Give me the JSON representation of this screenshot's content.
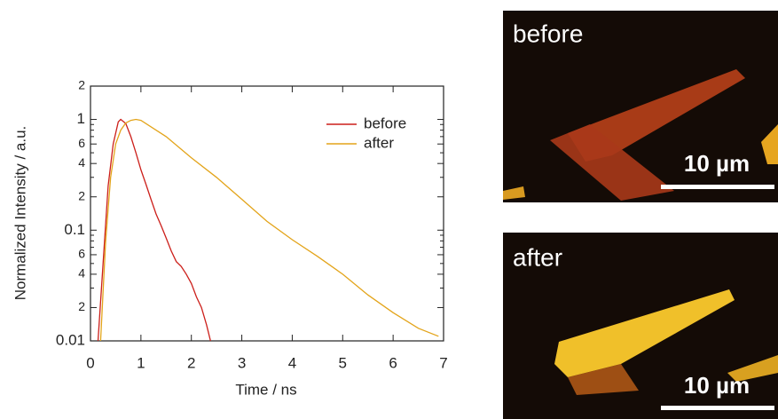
{
  "chart_data": {
    "type": "line",
    "log_y": true,
    "xlabel": "Time / ns",
    "ylabel": "Normalized Intensity / a.u.",
    "xlim": [
      0,
      7
    ],
    "xticks": [
      0,
      1,
      2,
      3,
      4,
      5,
      6,
      7
    ],
    "ylim": [
      0.01,
      2
    ],
    "yticks": [
      0.01,
      {
        "value": 0.02,
        "label": "2"
      },
      {
        "value": 0.04,
        "label": "4"
      },
      {
        "value": 0.06,
        "label": "6"
      },
      0.1,
      {
        "value": 0.2,
        "label": "2"
      },
      {
        "value": 0.4,
        "label": "4"
      },
      {
        "value": 0.6,
        "label": "6"
      },
      1,
      {
        "value": 2,
        "label": "2"
      }
    ],
    "yticks_minor": [
      0.03,
      0.05,
      0.07,
      0.08,
      0.09,
      0.3,
      0.5,
      0.7,
      0.8,
      0.9
    ],
    "legend": "upper right",
    "series": [
      {
        "name": "before",
        "color": "#cc1f1a",
        "x": [
          0.15,
          0.25,
          0.35,
          0.45,
          0.55,
          0.6,
          0.7,
          0.8,
          0.9,
          1.0,
          1.1,
          1.2,
          1.3,
          1.4,
          1.5,
          1.6,
          1.7,
          1.8,
          1.9,
          2.0,
          2.1,
          2.2,
          2.3,
          2.38
        ],
        "values": [
          0.01,
          0.05,
          0.25,
          0.6,
          0.95,
          1.0,
          0.92,
          0.7,
          0.5,
          0.35,
          0.26,
          0.19,
          0.14,
          0.11,
          0.085,
          0.065,
          0.052,
          0.047,
          0.04,
          0.033,
          0.025,
          0.02,
          0.014,
          0.01
        ]
      },
      {
        "name": "after",
        "color": "#e3a41a",
        "x": [
          0.2,
          0.3,
          0.4,
          0.5,
          0.6,
          0.7,
          0.8,
          0.9,
          1.0,
          1.5,
          2.0,
          2.5,
          3.0,
          3.5,
          4.0,
          4.5,
          5.0,
          5.5,
          6.0,
          6.5,
          6.9
        ],
        "values": [
          0.01,
          0.08,
          0.3,
          0.6,
          0.8,
          0.93,
          0.98,
          1.0,
          0.98,
          0.7,
          0.45,
          0.3,
          0.19,
          0.12,
          0.082,
          0.058,
          0.04,
          0.026,
          0.018,
          0.013,
          0.011
        ]
      }
    ]
  },
  "images": [
    {
      "label": "before",
      "scale": "10 µm"
    },
    {
      "label": "after",
      "scale": "10 µm"
    }
  ]
}
